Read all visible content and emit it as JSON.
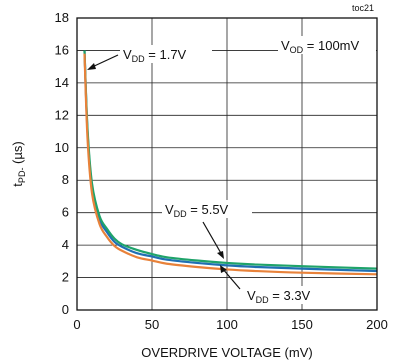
{
  "chart_data": {
    "type": "line",
    "corner_label": "toc21",
    "xlabel": "OVERDRIVE VOLTAGE (mV)",
    "ylabel": {
      "main": "t",
      "sub": "PD-",
      "unit": " (µs)"
    },
    "xlim": [
      0,
      200
    ],
    "ylim": [
      0,
      18
    ],
    "x_ticks": [
      "0",
      "50",
      "100",
      "150",
      "200"
    ],
    "y_ticks": [
      "0",
      "2",
      "4",
      "6",
      "8",
      "10",
      "12",
      "14",
      "16",
      "18"
    ],
    "grid": true,
    "annotations": [
      {
        "main": "V",
        "sub": "DD",
        "rest": " = 1.7V"
      },
      {
        "main": "V",
        "sub": "OD",
        "rest": " = 100mV"
      },
      {
        "main": "V",
        "sub": "DD",
        "rest": " = 5.5V"
      },
      {
        "main": "V",
        "sub": "DD",
        "rest": " = 3.3V"
      }
    ],
    "series": [
      {
        "color": "#1f6fb2",
        "x": [
          5,
          7,
          10,
          15,
          20,
          25,
          30,
          40,
          50,
          60,
          80,
          100,
          120,
          150,
          200
        ],
        "y": [
          16,
          11,
          7.6,
          5.6,
          4.8,
          4.2,
          3.9,
          3.5,
          3.3,
          3.1,
          2.9,
          2.75,
          2.65,
          2.55,
          2.4
        ]
      },
      {
        "color": "#1fa36a",
        "x": [
          5,
          7,
          10,
          15,
          20,
          25,
          30,
          40,
          50,
          60,
          80,
          100,
          120,
          150,
          200
        ],
        "y": [
          16,
          11.2,
          7.8,
          5.8,
          5.0,
          4.4,
          4.05,
          3.7,
          3.45,
          3.25,
          3.05,
          2.9,
          2.8,
          2.7,
          2.55
        ]
      },
      {
        "color": "#e8823a",
        "x": [
          5,
          7,
          10,
          15,
          20,
          25,
          30,
          40,
          50,
          60,
          80,
          100,
          120,
          150,
          200
        ],
        "y": [
          15.8,
          10.6,
          7.2,
          5.3,
          4.5,
          3.95,
          3.65,
          3.25,
          3.05,
          2.85,
          2.65,
          2.5,
          2.4,
          2.3,
          2.2
        ]
      }
    ]
  }
}
